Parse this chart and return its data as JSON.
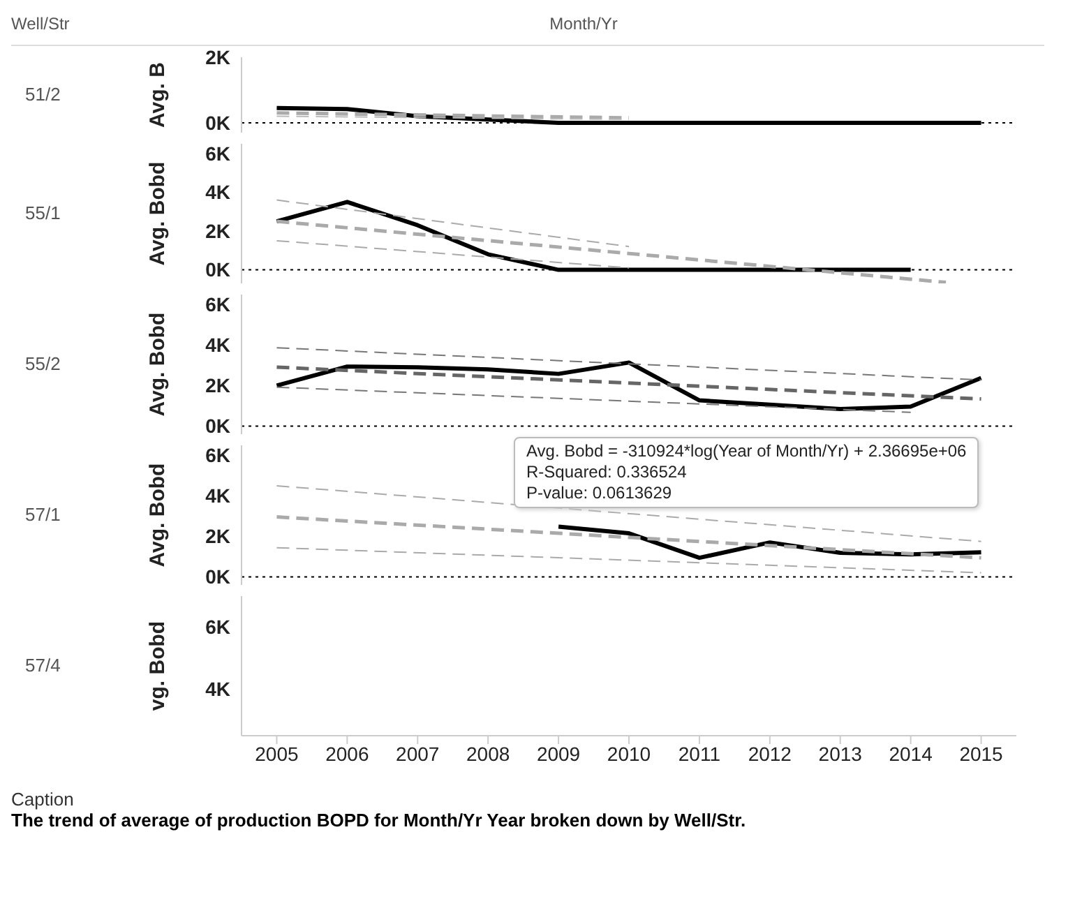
{
  "chart_data": [
    {
      "type": "line",
      "xlabel": "Month/Yr",
      "ylabel": "Avg. B",
      "annotations": [
        "51/2",
        "Well/Str"
      ],
      "xlim": [
        2004.5,
        2015.5
      ],
      "xticks": [
        2005,
        2006,
        2007,
        2008,
        2009,
        2010,
        2011,
        2012,
        2013,
        2014,
        2015
      ],
      "ylim": [
        -300,
        2000
      ],
      "yticks": [
        {
          "value": 0,
          "label": "0K"
        },
        {
          "value": 2000,
          "label": "2K"
        }
      ],
      "tick_labels": "y",
      "marker": "none",
      "ref_lines": [
        {
          "axis": "y",
          "value": 0,
          "color": "#000000",
          "line_style": "dotted"
        }
      ],
      "series": [
        {
          "color": "#000000",
          "line_style": "solid",
          "x": [
            2005,
            2006,
            2007,
            2008,
            2009,
            2010,
            2011,
            2012,
            2013,
            2014,
            2015
          ],
          "values": [
            450,
            420,
            200,
            100,
            0,
            0,
            0,
            0,
            0,
            0,
            0
          ]
        },
        {
          "color": "#aaaaaa",
          "line_style": "dashed",
          "x": [
            2005,
            2010
          ],
          "values": [
            300,
            150
          ]
        },
        {
          "color": "#bbbbbb",
          "line_style": "dashed",
          "x": [
            2005,
            2010
          ],
          "values": [
            200,
            100
          ]
        }
      ]
    },
    {
      "type": "line",
      "annotations": [
        "55/1"
      ],
      "ylabel": "Avg. Bobd",
      "xlim": [
        2004.5,
        2015.5
      ],
      "xticks": [
        2005,
        2006,
        2007,
        2008,
        2009,
        2010,
        2011,
        2012,
        2013,
        2014,
        2015
      ],
      "ylim": [
        -700,
        6500
      ],
      "yticks": [
        {
          "value": 0,
          "label": "0K"
        },
        {
          "value": 2000,
          "label": "2K"
        },
        {
          "value": 4000,
          "label": "4K"
        },
        {
          "value": 6000,
          "label": "6K"
        }
      ],
      "tick_labels": "y",
      "marker": "none",
      "ref_lines": [
        {
          "axis": "y",
          "value": 0,
          "color": "#000000",
          "line_style": "dotted"
        }
      ],
      "series": [
        {
          "color": "#000000",
          "line_style": "solid",
          "x": [
            2005,
            2006,
            2007,
            2008,
            2009,
            2010,
            2011,
            2012,
            2013,
            2014
          ],
          "values": [
            2500,
            3500,
            2300,
            800,
            0,
            0,
            0,
            0,
            0,
            0
          ]
        },
        {
          "color": "#aaaaaa",
          "line_style": "dashed",
          "x": [
            2005,
            2014.5
          ],
          "values": [
            2500,
            -650
          ]
        },
        {
          "color": "#aaaaaa",
          "line_style": "dashed",
          "x": [
            2005,
            2010
          ],
          "values": [
            3600,
            1200
          ]
        },
        {
          "color": "#aaaaaa",
          "line_style": "dashed",
          "x": [
            2005,
            2010
          ],
          "values": [
            1500,
            100
          ]
        }
      ]
    },
    {
      "type": "line",
      "annotations": [
        "55/2"
      ],
      "ylabel": "Avg. Bobd",
      "xlim": [
        2004.5,
        2015.5
      ],
      "xticks": [
        2005,
        2006,
        2007,
        2008,
        2009,
        2010,
        2011,
        2012,
        2013,
        2014,
        2015
      ],
      "ylim": [
        -400,
        6500
      ],
      "yticks": [
        {
          "value": 0,
          "label": "0K"
        },
        {
          "value": 2000,
          "label": "2K"
        },
        {
          "value": 4000,
          "label": "4K"
        },
        {
          "value": 6000,
          "label": "6K"
        }
      ],
      "tick_labels": "y",
      "marker": "none",
      "ref_lines": [
        {
          "axis": "y",
          "value": 0,
          "color": "#000000",
          "line_style": "dotted"
        }
      ],
      "series": [
        {
          "color": "#000000",
          "line_style": "solid",
          "x": [
            2005,
            2006,
            2007,
            2008,
            2009,
            2010,
            2011,
            2012,
            2013,
            2014,
            2015
          ],
          "values": [
            2000,
            2940,
            2900,
            2800,
            2580,
            3140,
            1270,
            1060,
            840,
            960,
            2380
          ]
        },
        {
          "color": "#666666",
          "line_style": "dashed",
          "x": [
            2005,
            2015
          ],
          "values": [
            2910,
            1340
          ]
        },
        {
          "color": "#777777",
          "line_style": "dashed",
          "x": [
            2005,
            2015
          ],
          "values": [
            3870,
            2280
          ]
        },
        {
          "color": "#777777",
          "line_style": "dashed",
          "x": [
            2005,
            2014
          ],
          "values": [
            1920,
            680
          ]
        }
      ]
    },
    {
      "type": "line",
      "ylabel": "Avg. Bobd",
      "annotations": [
        "57/1",
        "Avg. Bobd = -310924*log(Year of Month/Yr) + 2.36695e+06",
        "R-Squared: 0.336524",
        "P-value: 0.0613629"
      ],
      "xlim": [
        2004.5,
        2015.5
      ],
      "xticks": [
        2005,
        2006,
        2007,
        2008,
        2009,
        2010,
        2011,
        2012,
        2013,
        2014,
        2015
      ],
      "ylim": [
        -400,
        6500
      ],
      "yticks": [
        {
          "value": 0,
          "label": "0K"
        },
        {
          "value": 2000,
          "label": "2K"
        },
        {
          "value": 4000,
          "label": "4K"
        },
        {
          "value": 6000,
          "label": "6K"
        }
      ],
      "tick_labels": "y",
      "marker": "none",
      "ref_lines": [
        {
          "axis": "y",
          "value": 0,
          "color": "#000000",
          "line_style": "dotted"
        }
      ],
      "series": [
        {
          "color": "#000000",
          "line_style": "solid",
          "x": [
            2009,
            2010,
            2011,
            2012,
            2013,
            2014,
            2015
          ],
          "values": [
            2480,
            2150,
            940,
            1700,
            1190,
            1110,
            1210
          ]
        },
        {
          "color": "#aaaaaa",
          "line_style": "dashed",
          "x": [
            2005,
            2015
          ],
          "values": [
            2960,
            940
          ]
        },
        {
          "color": "#aaaaaa",
          "line_style": "dashed",
          "x": [
            2005,
            2015
          ],
          "values": [
            4500,
            1750
          ]
        },
        {
          "color": "#aaaaaa",
          "line_style": "dashed",
          "x": [
            2005,
            2015
          ],
          "values": [
            1440,
            200
          ]
        }
      ]
    },
    {
      "type": "line",
      "ylabel": "vg. Bobd",
      "annotations": [
        "57/4",
        "Caption",
        "The trend of average of production BOPD for Month/Yr Year broken down by Well/Str."
      ],
      "xlim": [
        2004.5,
        2015.5
      ],
      "xticks": [
        2005,
        2006,
        2007,
        2008,
        2009,
        2010,
        2011,
        2012,
        2013,
        2014,
        2015
      ],
      "ylim": [
        2500,
        7000
      ],
      "yticks": [
        {
          "value": 4000,
          "label": "4K"
        },
        {
          "value": 6000,
          "label": "6K"
        }
      ],
      "marker": "none"
    }
  ]
}
